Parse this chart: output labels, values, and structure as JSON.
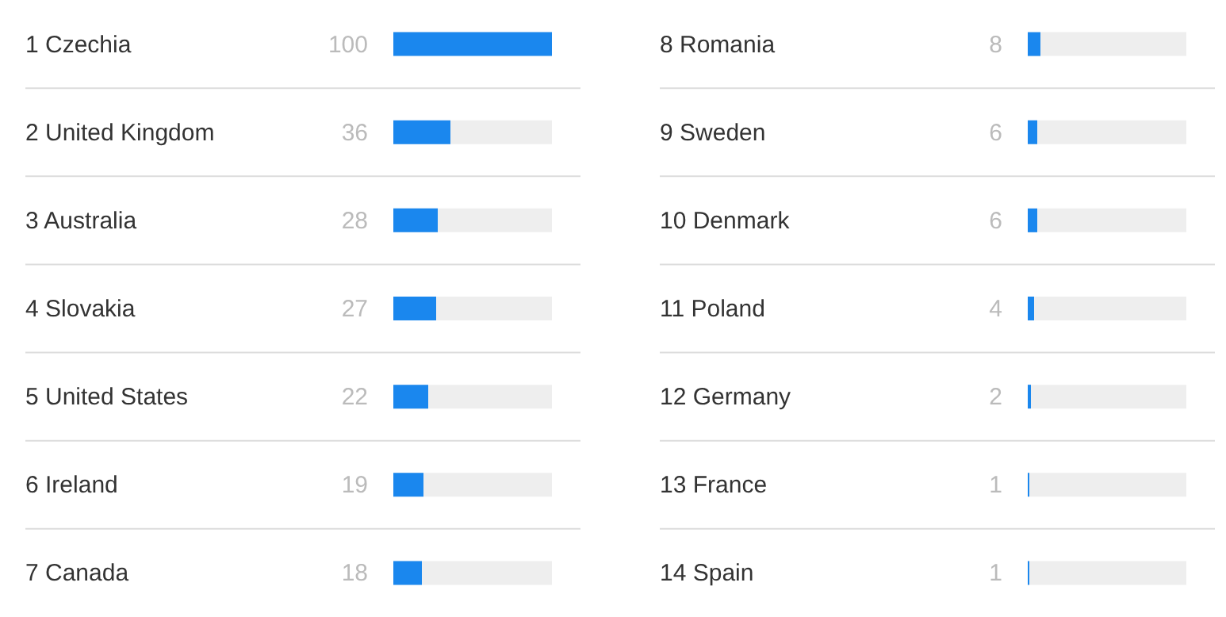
{
  "chart_data": [
    {
      "type": "bar",
      "orientation": "horizontal",
      "categories": [
        "1 Czechia",
        "2 United Kingdom",
        "3 Australia",
        "4 Slovakia",
        "5 United States",
        "6 Ireland",
        "7 Canada"
      ],
      "values": [
        100,
        36,
        28,
        27,
        22,
        19,
        18
      ],
      "color": "#1a87ee",
      "xlim": [
        0,
        100
      ],
      "data_labels": true,
      "tick_labels": false,
      "grid": "y"
    },
    {
      "type": "bar",
      "orientation": "horizontal",
      "categories": [
        "8 Romania",
        "9 Sweden",
        "10 Denmark",
        "11 Poland",
        "12 Germany",
        "13 France",
        "14 Spain"
      ],
      "values": [
        8,
        6,
        6,
        4,
        2,
        1,
        1
      ],
      "color": "#1a87ee",
      "xlim": [
        0,
        100
      ],
      "data_labels": true,
      "tick_labels": false,
      "grid": "y"
    }
  ]
}
